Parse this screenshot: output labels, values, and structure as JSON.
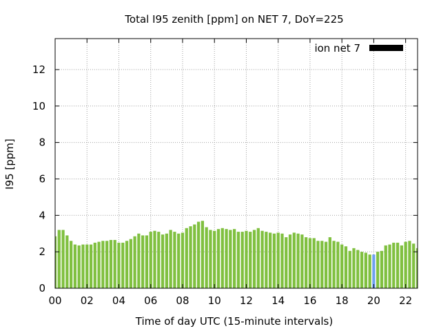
{
  "chart_data": {
    "type": "bar",
    "title": "Total I95 zenith [ppm] on NET 7, DoY=225",
    "xlabel": "Time of day UTC (15-minute intervals)",
    "ylabel": "I95 [ppm]",
    "ylim": [
      0,
      13.7
    ],
    "xlim": [
      0,
      22.75
    ],
    "yticks": [
      0,
      2,
      4,
      6,
      8,
      10,
      12
    ],
    "xticks": [
      {
        "value": 0,
        "label": "00"
      },
      {
        "value": 2,
        "label": "02"
      },
      {
        "value": 4,
        "label": "04"
      },
      {
        "value": 6,
        "label": "06"
      },
      {
        "value": 8,
        "label": "08"
      },
      {
        "value": 10,
        "label": "10"
      },
      {
        "value": 12,
        "label": "12"
      },
      {
        "value": 14,
        "label": "14"
      },
      {
        "value": 16,
        "label": "16"
      },
      {
        "value": 18,
        "label": "18"
      },
      {
        "value": 20,
        "label": "20"
      },
      {
        "value": 22,
        "label": "22"
      }
    ],
    "grid": true,
    "legend": {
      "placement": "top-right",
      "entries": [
        {
          "name": "ion net 7",
          "color": "#000000"
        }
      ]
    },
    "bar_color": "#80c040",
    "highlight_color": "#6ea0f0",
    "highlight_index": 80,
    "interval_hours": 0.25,
    "values": [
      2.85,
      3.2,
      3.2,
      2.9,
      2.6,
      2.4,
      2.35,
      2.4,
      2.4,
      2.4,
      2.5,
      2.55,
      2.6,
      2.6,
      2.65,
      2.65,
      2.5,
      2.5,
      2.6,
      2.7,
      2.85,
      3.0,
      2.9,
      2.9,
      3.1,
      3.15,
      3.1,
      2.95,
      3.0,
      3.2,
      3.1,
      3.0,
      3.05,
      3.3,
      3.4,
      3.5,
      3.65,
      3.7,
      3.35,
      3.2,
      3.15,
      3.25,
      3.3,
      3.25,
      3.2,
      3.25,
      3.1,
      3.1,
      3.15,
      3.1,
      3.2,
      3.3,
      3.15,
      3.1,
      3.05,
      3.0,
      3.05,
      3.0,
      2.8,
      2.95,
      3.05,
      3.0,
      2.95,
      2.8,
      2.75,
      2.75,
      2.6,
      2.6,
      2.55,
      2.8,
      2.6,
      2.55,
      2.4,
      2.3,
      2.05,
      2.2,
      2.1,
      2.0,
      1.95,
      1.85,
      1.85,
      2.0,
      2.05,
      2.35,
      2.4,
      2.5,
      2.5,
      2.35,
      2.55,
      2.6,
      2.45,
      2.2
    ]
  }
}
